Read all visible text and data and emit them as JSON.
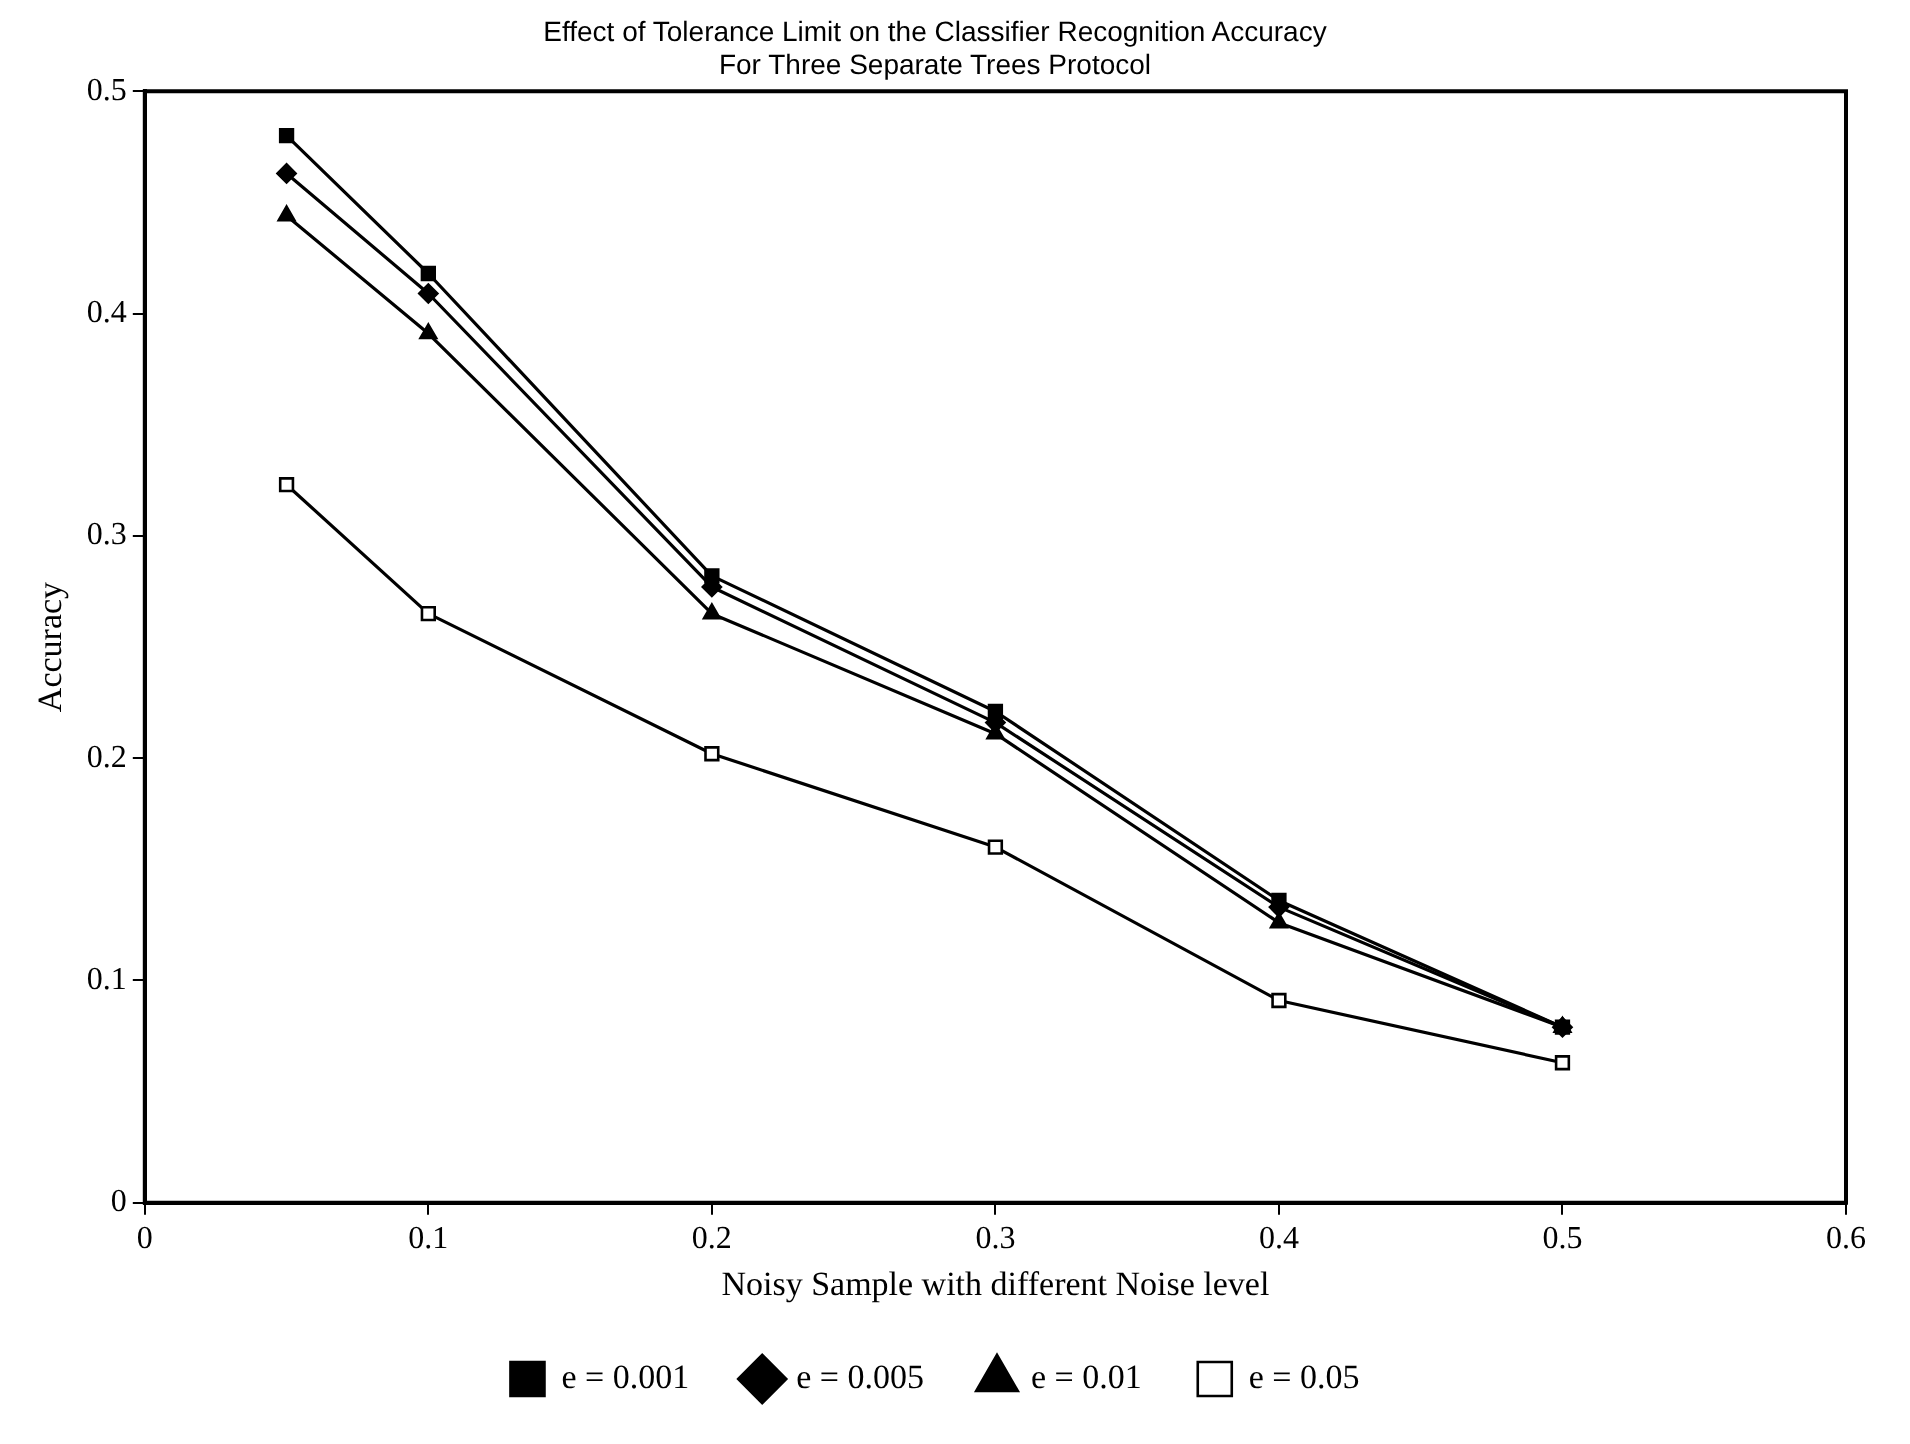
{
  "chart_data": {
    "type": "line",
    "title": "Effect of Tolerance Limit on the Classifier Recognition Accuracy\nFor Three Separate Trees Protocol",
    "xlabel": "Noisy Sample with different Noise level",
    "ylabel": "Accuracy",
    "x": [
      0.05,
      0.1,
      0.2,
      0.3,
      0.4,
      0.5
    ],
    "series": [
      {
        "name": "e = 0.001",
        "color": "#000000",
        "marker": "square",
        "values": [
          0.48,
          0.418,
          0.282,
          0.221,
          0.136,
          0.079
        ]
      },
      {
        "name": "e = 0.005",
        "color": "#000000",
        "marker": "diamond",
        "values": [
          0.463,
          0.409,
          0.277,
          0.216,
          0.133,
          0.079
        ]
      },
      {
        "name": "e = 0.01",
        "color": "#000000",
        "marker": "triangle",
        "values": [
          0.444,
          0.391,
          0.265,
          0.211,
          0.126,
          0.079
        ]
      },
      {
        "name": "e = 0.05",
        "color": "#000000",
        "marker": "square",
        "values": [
          0.323,
          0.265,
          0.202,
          0.16,
          0.091,
          0.063
        ]
      }
    ],
    "xlim": [
      0,
      0.6
    ],
    "xticks": [
      0,
      0.1,
      0.2,
      0.3,
      0.4,
      0.5,
      0.6
    ],
    "ylim": [
      0,
      0.5
    ],
    "yticks": [
      0,
      0.1,
      0.2,
      0.3,
      0.4,
      0.5
    ],
    "grid": false,
    "legend": "bottom",
    "line_style": "solid"
  }
}
